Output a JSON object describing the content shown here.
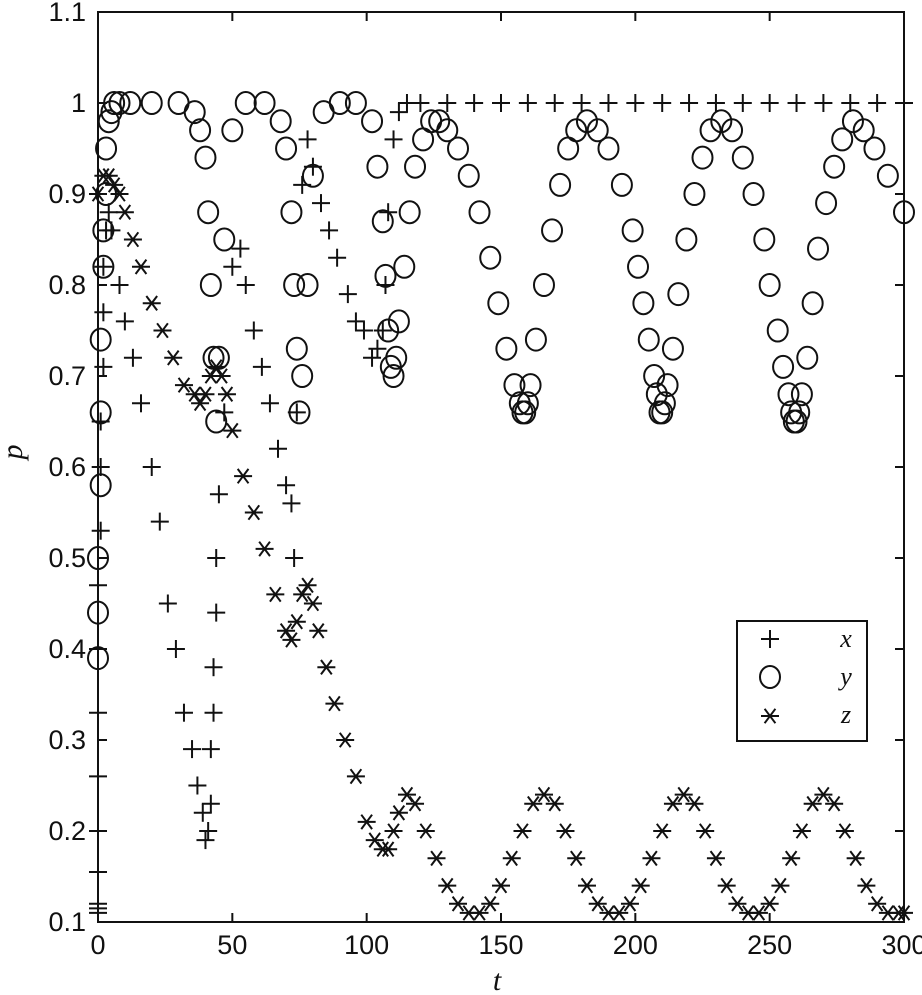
{
  "chart_data": {
    "type": "scatter",
    "xlabel": "t",
    "ylabel": "p",
    "xlim": [
      0,
      300
    ],
    "ylim": [
      0.1,
      1.1
    ],
    "x_ticks": [
      "0",
      "50",
      "100",
      "150",
      "200",
      "250",
      "300"
    ],
    "y_ticks": [
      "0.1",
      "0.2",
      "0.3",
      "0.4",
      "0.5",
      "0.6",
      "0.7",
      "0.8",
      "0.9",
      "1",
      "1.1"
    ],
    "grid": false,
    "legend_position": "center-right",
    "colors": {
      "markers": "#111111",
      "axes": "#111111",
      "background": "#ffffff"
    },
    "series": [
      {
        "name": "x",
        "marker": "plus",
        "x": [
          0,
          0,
          0,
          0,
          0,
          0,
          0,
          0,
          0,
          1,
          1,
          1,
          2,
          2,
          2,
          3,
          4,
          5,
          8,
          10,
          13,
          16,
          20,
          23,
          26,
          29,
          32,
          35,
          37,
          39,
          40,
          41,
          42,
          42,
          43,
          43,
          44,
          44,
          45,
          47,
          50,
          53,
          55,
          58,
          61,
          64,
          67,
          70,
          72,
          73,
          74,
          76,
          78,
          80,
          83,
          86,
          89,
          93,
          96,
          99,
          102,
          104,
          106,
          107,
          108,
          110,
          112,
          115,
          120,
          130,
          140,
          150,
          160,
          170,
          180,
          190,
          200,
          210,
          220,
          230,
          240,
          250,
          260,
          270,
          280,
          290,
          300
        ],
        "y": [
          0.11,
          0.115,
          0.12,
          0.155,
          0.2,
          0.26,
          0.33,
          0.4,
          0.47,
          0.53,
          0.6,
          0.65,
          0.71,
          0.77,
          0.82,
          0.86,
          0.88,
          0.86,
          0.8,
          0.76,
          0.72,
          0.67,
          0.6,
          0.54,
          0.45,
          0.4,
          0.33,
          0.29,
          0.25,
          0.22,
          0.19,
          0.2,
          0.23,
          0.29,
          0.33,
          0.38,
          0.44,
          0.5,
          0.57,
          0.66,
          0.82,
          0.84,
          0.8,
          0.75,
          0.71,
          0.67,
          0.62,
          0.58,
          0.56,
          0.5,
          0.66,
          0.91,
          0.96,
          0.93,
          0.89,
          0.86,
          0.83,
          0.79,
          0.76,
          0.75,
          0.72,
          0.73,
          0.75,
          0.8,
          0.88,
          0.96,
          0.99,
          1.0,
          1.0,
          1.0,
          1.0,
          1.0,
          1.0,
          1.0,
          1.0,
          1.0,
          1.0,
          1.0,
          1.0,
          1.0,
          1.0,
          1.0,
          1.0,
          1.0,
          1.0,
          1.0,
          1.0
        ]
      },
      {
        "name": "y",
        "marker": "circle",
        "x": [
          0,
          0,
          0,
          1,
          1,
          1,
          2,
          2,
          3,
          3,
          4,
          5,
          6,
          8,
          12,
          20,
          30,
          36,
          38,
          40,
          41,
          42,
          43,
          44,
          45,
          47,
          50,
          55,
          62,
          68,
          70,
          72,
          73,
          74,
          75,
          76,
          78,
          80,
          84,
          90,
          96,
          102,
          104,
          106,
          107,
          108,
          109,
          110,
          111,
          112,
          114,
          116,
          118,
          121,
          124,
          127,
          130,
          134,
          138,
          142,
          146,
          149,
          152,
          155,
          157,
          158,
          159,
          160,
          161,
          163,
          166,
          169,
          172,
          175,
          178,
          182,
          186,
          190,
          195,
          199,
          201,
          203,
          205,
          207,
          208,
          209,
          210,
          211,
          212,
          214,
          216,
          219,
          222,
          225,
          228,
          232,
          236,
          240,
          244,
          248,
          250,
          253,
          255,
          257,
          258,
          259,
          260,
          261,
          262,
          264,
          266,
          268,
          271,
          274,
          277,
          281,
          285,
          289,
          294,
          300
        ],
        "y": [
          0.39,
          0.44,
          0.5,
          0.58,
          0.66,
          0.74,
          0.82,
          0.86,
          0.9,
          0.95,
          0.98,
          0.99,
          1.0,
          1.0,
          1.0,
          1.0,
          1.0,
          0.99,
          0.97,
          0.94,
          0.88,
          0.8,
          0.72,
          0.65,
          0.72,
          0.85,
          0.97,
          1.0,
          1.0,
          0.98,
          0.95,
          0.88,
          0.8,
          0.73,
          0.66,
          0.7,
          0.8,
          0.92,
          0.99,
          1.0,
          1.0,
          0.98,
          0.93,
          0.87,
          0.81,
          0.75,
          0.71,
          0.7,
          0.72,
          0.76,
          0.82,
          0.88,
          0.93,
          0.96,
          0.98,
          0.98,
          0.97,
          0.95,
          0.92,
          0.88,
          0.83,
          0.78,
          0.73,
          0.69,
          0.67,
          0.66,
          0.66,
          0.67,
          0.69,
          0.74,
          0.8,
          0.86,
          0.91,
          0.95,
          0.97,
          0.98,
          0.97,
          0.95,
          0.91,
          0.86,
          0.82,
          0.78,
          0.74,
          0.7,
          0.68,
          0.66,
          0.66,
          0.67,
          0.69,
          0.73,
          0.79,
          0.85,
          0.9,
          0.94,
          0.97,
          0.98,
          0.97,
          0.94,
          0.9,
          0.85,
          0.8,
          0.75,
          0.71,
          0.68,
          0.66,
          0.65,
          0.65,
          0.66,
          0.68,
          0.72,
          0.78,
          0.84,
          0.89,
          0.93,
          0.96,
          0.98,
          0.97,
          0.95,
          0.92,
          0.88
        ]
      },
      {
        "name": "z",
        "marker": "asterisk",
        "x": [
          0,
          2,
          4,
          6,
          8,
          10,
          13,
          16,
          20,
          24,
          28,
          32,
          36,
          38,
          40,
          42,
          44,
          46,
          48,
          50,
          54,
          58,
          62,
          66,
          70,
          72,
          74,
          76,
          78,
          80,
          82,
          85,
          88,
          92,
          96,
          100,
          103,
          106,
          108,
          110,
          112,
          115,
          118,
          122,
          126,
          130,
          134,
          138,
          142,
          146,
          150,
          154,
          158,
          162,
          166,
          170,
          174,
          178,
          182,
          186,
          190,
          194,
          198,
          202,
          206,
          210,
          214,
          218,
          222,
          226,
          230,
          234,
          238,
          242,
          246,
          250,
          254,
          258,
          262,
          266,
          270,
          274,
          278,
          282,
          286,
          290,
          294,
          298,
          300
        ],
        "y": [
          0.9,
          0.92,
          0.92,
          0.91,
          0.9,
          0.88,
          0.85,
          0.82,
          0.78,
          0.75,
          0.72,
          0.69,
          0.68,
          0.67,
          0.68,
          0.7,
          0.71,
          0.7,
          0.68,
          0.64,
          0.59,
          0.55,
          0.51,
          0.46,
          0.42,
          0.41,
          0.43,
          0.46,
          0.47,
          0.45,
          0.42,
          0.38,
          0.34,
          0.3,
          0.26,
          0.21,
          0.19,
          0.18,
          0.18,
          0.2,
          0.22,
          0.24,
          0.23,
          0.2,
          0.17,
          0.14,
          0.12,
          0.11,
          0.11,
          0.12,
          0.14,
          0.17,
          0.2,
          0.23,
          0.24,
          0.23,
          0.2,
          0.17,
          0.14,
          0.12,
          0.11,
          0.11,
          0.12,
          0.14,
          0.17,
          0.2,
          0.23,
          0.24,
          0.23,
          0.2,
          0.17,
          0.14,
          0.12,
          0.11,
          0.11,
          0.12,
          0.14,
          0.17,
          0.2,
          0.23,
          0.24,
          0.23,
          0.2,
          0.17,
          0.14,
          0.12,
          0.11,
          0.11,
          0.11
        ]
      }
    ]
  }
}
